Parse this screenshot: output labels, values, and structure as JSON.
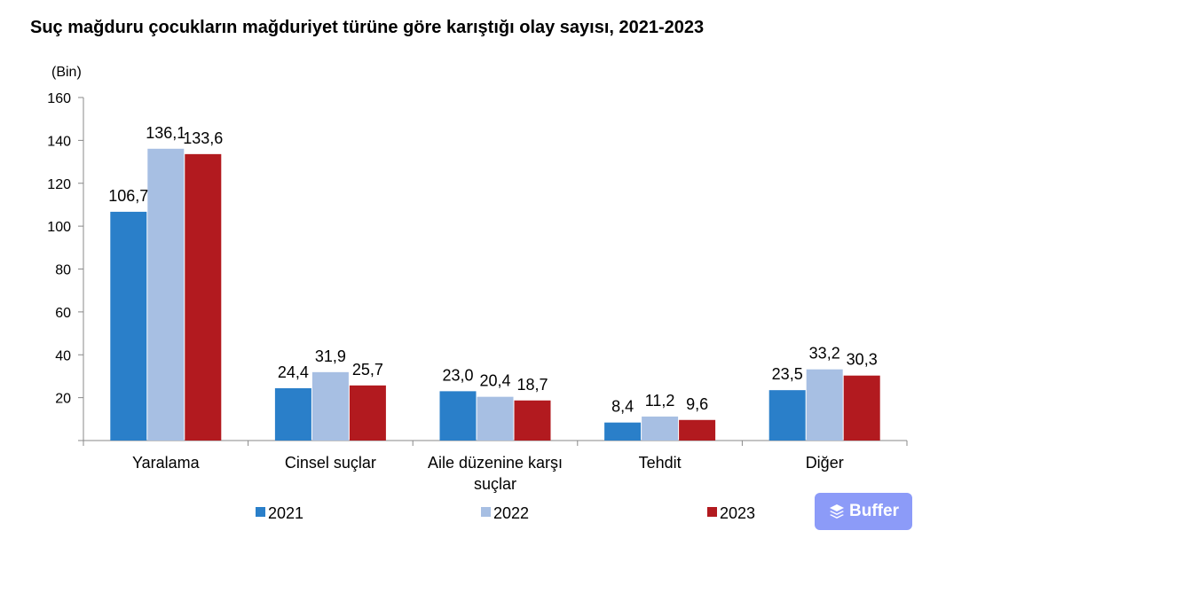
{
  "title": "Suç mağduru çocukların mağduriyet türüne göre karıştığı olay sayısı, 2021-2023",
  "chart_data": {
    "type": "bar",
    "unit": "(Bin)",
    "categories": [
      [
        "Yaralama"
      ],
      [
        "Cinsel suçlar"
      ],
      [
        "Aile düzenine karşı",
        "suçlar"
      ],
      [
        "Tehdit"
      ],
      [
        "Diğer"
      ]
    ],
    "series": [
      {
        "name": "2021",
        "color": "#2a7fc9",
        "values": [
          106.7,
          24.4,
          23.0,
          8.4,
          23.5
        ],
        "labels": [
          "106,7",
          "24,4",
          "23,0",
          "8,4",
          "23,5"
        ]
      },
      {
        "name": "2022",
        "color": "#a7bfe3",
        "values": [
          136.1,
          31.9,
          20.4,
          11.2,
          33.2
        ],
        "labels": [
          "136,1",
          "31,9",
          "20,4",
          "11,2",
          "33,2"
        ]
      },
      {
        "name": "2023",
        "color": "#b21a1f",
        "values": [
          133.6,
          25.7,
          18.7,
          9.6,
          30.3
        ],
        "labels": [
          "133,6",
          "25,7",
          "18,7",
          "9,6",
          "30,3"
        ]
      }
    ],
    "yticks": [
      "20",
      "40",
      "60",
      "80",
      "100",
      "120",
      "140",
      "160"
    ],
    "ylim": [
      0,
      160
    ],
    "grid": false,
    "legend": "bottom"
  },
  "watermark": {
    "label": "Buffer",
    "icon": "layers-icon"
  }
}
